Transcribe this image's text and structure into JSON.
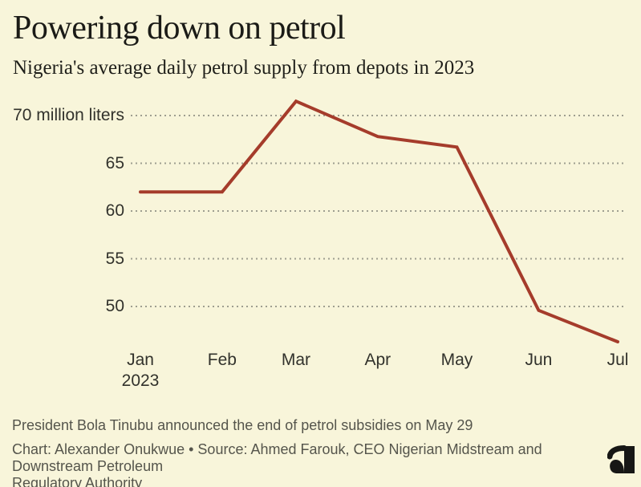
{
  "page": {
    "background_color": "#f8f5da"
  },
  "header": {
    "title": "Powering down on petrol",
    "subtitle": "Nigeria's average daily petrol supply from depots in 2023"
  },
  "chart_data": {
    "type": "line",
    "title": "Powering down on petrol",
    "subtitle": "Nigeria's average daily petrol supply from depots in 2023",
    "categories": [
      "Jan",
      "Feb",
      "Mar",
      "Apr",
      "May",
      "Jun",
      "Jul"
    ],
    "values": [
      62,
      62,
      71.5,
      67.8,
      66.7,
      49.6,
      46.3
    ],
    "series_name": "Average daily petrol supply (million liters)",
    "unit": "million liters",
    "x_ticks": [
      {
        "label": "Jan",
        "label2": "2023",
        "day": 0
      },
      {
        "label": "Feb",
        "day": 31
      },
      {
        "label": "Mar",
        "day": 59
      },
      {
        "label": "Apr",
        "day": 90
      },
      {
        "label": "May",
        "day": 120
      },
      {
        "label": "Jun",
        "day": 151
      },
      {
        "label": "Jul",
        "day": 181
      }
    ],
    "y_ticks": [
      {
        "label": "70 million liters",
        "value": 70
      },
      {
        "label": "65",
        "value": 65
      },
      {
        "label": "60",
        "value": 60
      },
      {
        "label": "55",
        "value": 55
      },
      {
        "label": "50",
        "value": 50
      }
    ],
    "ylim": [
      45,
      73
    ],
    "grid": "horizontal-dotted",
    "legend": "none",
    "line_color": "#a53c2b",
    "grid_color": "#9e9e90",
    "axis_text_color": "#32322c"
  },
  "footer": {
    "note": "President Bola Tinubu announced the end of petrol subsidies on May 29",
    "credit_line1": "Chart: Alexander Onukwue • Source: Ahmed Farouk, CEO Nigerian Midstream and Downstream Petroleum",
    "credit_line2": "Regulatory Authority",
    "logo_name": "semafor-logo"
  }
}
